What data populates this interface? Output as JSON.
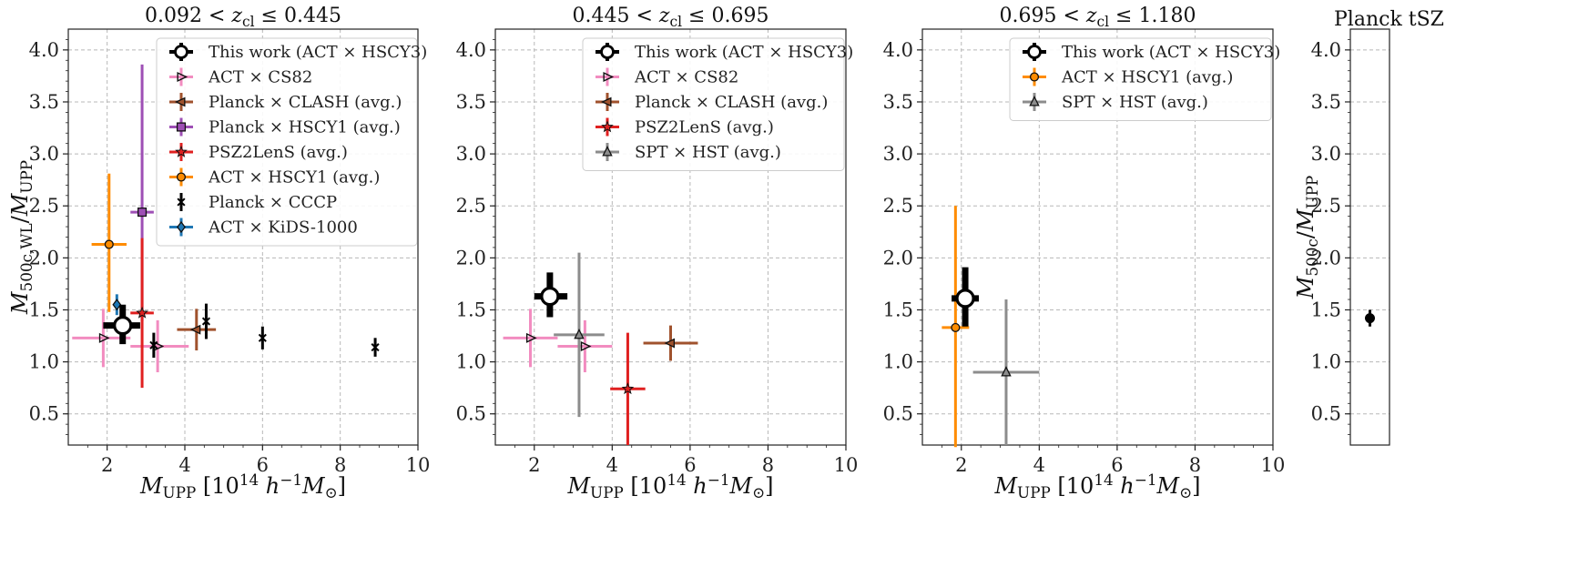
{
  "chart_data": [
    {
      "type": "scatter",
      "title": "0.092 < z_cl ≤ 0.445",
      "xlabel": "M_UPP [10^14 h^-1 M_⊙]",
      "ylabel": "M_500c,WL / M_UPP",
      "xlim": [
        1,
        10
      ],
      "ylim": [
        0.2,
        4.2
      ],
      "xticks": [
        "2",
        "4",
        "6",
        "8",
        "10"
      ],
      "yticks": [
        "0.5",
        "1.0",
        "1.5",
        "2.0",
        "2.5",
        "3.0",
        "3.5",
        "4.0"
      ],
      "legend_position": "top-right",
      "series": [
        {
          "name": "This work (ACT × HSCY3)",
          "color": "#000000",
          "marker": "circle-open",
          "size": "large",
          "points": [
            {
              "x": 2.4,
              "y": 1.35,
              "xerr": [
                0.5,
                0.45
              ],
              "yerr": [
                0.18,
                0.2
              ]
            }
          ]
        },
        {
          "name": "ACT × CS82",
          "color": "#f28cc0",
          "marker": "triangle-right",
          "points": [
            {
              "x": 1.9,
              "y": 1.23,
              "xerr": [
                0.8,
                0.7
              ],
              "yerr": [
                0.28,
                0.28
              ]
            },
            {
              "x": 3.3,
              "y": 1.15,
              "xerr": [
                0.7,
                0.8
              ],
              "yerr": [
                0.25,
                0.25
              ]
            }
          ]
        },
        {
          "name": "Planck × CLASH (avg.)",
          "color": "#a0522d",
          "marker": "triangle-left",
          "points": [
            {
              "x": 4.3,
              "y": 1.31,
              "xerr": [
                0.5,
                0.5
              ],
              "yerr": [
                0.2,
                0.2
              ]
            }
          ]
        },
        {
          "name": "Planck × HSCY1 (avg.)",
          "color": "#9e4fb5",
          "marker": "square",
          "points": [
            {
              "x": 2.9,
              "y": 2.44,
              "xerr": [
                0.3,
                0.3
              ],
              "yerr": [
                1.05,
                1.42
              ]
            }
          ]
        },
        {
          "name": "PSZ2LenS (avg.)",
          "color": "#e02020",
          "marker": "star",
          "points": [
            {
              "x": 2.9,
              "y": 1.47,
              "xerr": [
                0.3,
                0.3
              ],
              "yerr": [
                0.72,
                0.72
              ]
            }
          ]
        },
        {
          "name": "ACT × HSCY1 (avg.)",
          "color": "#ff8c00",
          "marker": "circle",
          "points": [
            {
              "x": 2.05,
              "y": 2.13,
              "xerr": [
                0.45,
                0.45
              ],
              "yerr": [
                0.65,
                0.68
              ]
            }
          ]
        },
        {
          "name": "Planck × CCCP",
          "color": "#000000",
          "marker": "x",
          "points": [
            {
              "x": 3.2,
              "y": 1.16,
              "xerr": [
                0,
                0
              ],
              "yerr": [
                0.12,
                0.12
              ]
            },
            {
              "x": 4.55,
              "y": 1.39,
              "xerr": [
                0,
                0
              ],
              "yerr": [
                0.17,
                0.17
              ]
            },
            {
              "x": 6.0,
              "y": 1.23,
              "xerr": [
                0,
                0
              ],
              "yerr": [
                0.11,
                0.11
              ]
            },
            {
              "x": 8.9,
              "y": 1.14,
              "xerr": [
                0,
                0
              ],
              "yerr": [
                0.09,
                0.09
              ]
            }
          ]
        },
        {
          "name": "ACT × KiDS-1000",
          "color": "#1f77b4",
          "marker": "diamond",
          "points": [
            {
              "x": 2.25,
              "y": 1.55,
              "xerr": [
                0,
                0
              ],
              "yerr": [
                0.1,
                0.1
              ]
            }
          ]
        }
      ]
    },
    {
      "type": "scatter",
      "title": "0.445 < z_cl ≤ 0.695",
      "xlabel": "M_UPP [10^14 h^-1 M_⊙]",
      "ylabel": "",
      "xlim": [
        1,
        10
      ],
      "ylim": [
        0.2,
        4.2
      ],
      "xticks": [
        "2",
        "4",
        "6",
        "8",
        "10"
      ],
      "yticks": [
        "0.5",
        "1.0",
        "1.5",
        "2.0",
        "2.5",
        "3.0",
        "3.5",
        "4.0"
      ],
      "legend_position": "top-right",
      "series": [
        {
          "name": "This work (ACT × HSCY3)",
          "color": "#000000",
          "marker": "circle-open",
          "size": "large",
          "points": [
            {
              "x": 2.4,
              "y": 1.63,
              "xerr": [
                0.4,
                0.45
              ],
              "yerr": [
                0.2,
                0.23
              ]
            }
          ]
        },
        {
          "name": "ACT × CS82",
          "color": "#f28cc0",
          "marker": "triangle-right",
          "points": [
            {
              "x": 1.9,
              "y": 1.23,
              "xerr": [
                0.7,
                0.7
              ],
              "yerr": [
                0.28,
                0.28
              ]
            },
            {
              "x": 3.3,
              "y": 1.15,
              "xerr": [
                0.7,
                0.7
              ],
              "yerr": [
                0.25,
                0.25
              ]
            }
          ]
        },
        {
          "name": "Planck × CLASH (avg.)",
          "color": "#a0522d",
          "marker": "triangle-left",
          "points": [
            {
              "x": 5.5,
              "y": 1.18,
              "xerr": [
                0.7,
                0.7
              ],
              "yerr": [
                0.17,
                0.17
              ]
            }
          ]
        },
        {
          "name": "PSZ2LenS (avg.)",
          "color": "#e02020",
          "marker": "star",
          "points": [
            {
              "x": 4.4,
              "y": 0.74,
              "xerr": [
                0.45,
                0.45
              ],
              "yerr": [
                0.54,
                0.54
              ]
            }
          ]
        },
        {
          "name": "SPT × HST (avg.)",
          "color": "#8c8c8c",
          "marker": "triangle-up",
          "points": [
            {
              "x": 3.15,
              "y": 1.26,
              "xerr": [
                0.65,
                0.65
              ],
              "yerr": [
                0.79,
                0.79
              ]
            }
          ]
        }
      ]
    },
    {
      "type": "scatter",
      "title": "0.695 < z_cl ≤ 1.180",
      "xlabel": "M_UPP [10^14 h^-1 M_⊙]",
      "ylabel": "",
      "xlim": [
        1,
        10
      ],
      "ylim": [
        0.2,
        4.2
      ],
      "xticks": [
        "2",
        "4",
        "6",
        "8",
        "10"
      ],
      "yticks": [
        "0.5",
        "1.0",
        "1.5",
        "2.0",
        "2.5",
        "3.0",
        "3.5",
        "4.0"
      ],
      "legend_position": "top-right",
      "series": [
        {
          "name": "This work (ACT × HSCY3)",
          "color": "#000000",
          "marker": "circle-open",
          "size": "large",
          "points": [
            {
              "x": 2.1,
              "y": 1.61,
              "xerr": [
                0.35,
                0.35
              ],
              "yerr": [
                0.27,
                0.3
              ]
            }
          ]
        },
        {
          "name": "ACT × HSCY1 (avg.)",
          "color": "#ff8c00",
          "marker": "circle",
          "points": [
            {
              "x": 1.85,
              "y": 1.33,
              "xerr": [
                0.35,
                0.35
              ],
              "yerr": [
                1.15,
                1.17
              ]
            }
          ]
        },
        {
          "name": "SPT × HST (avg.)",
          "color": "#8c8c8c",
          "marker": "triangle-up",
          "points": [
            {
              "x": 3.15,
              "y": 0.9,
              "xerr": [
                0.85,
                0.85
              ],
              "yerr": [
                0.7,
                0.7
              ]
            }
          ]
        }
      ]
    },
    {
      "type": "scatter",
      "title": "Planck tSZ",
      "xlabel": "",
      "ylabel": "M_500c / M_UPP",
      "ylim": [
        0.2,
        4.2
      ],
      "yticks": [
        "0.5",
        "1.0",
        "1.5",
        "2.0",
        "2.5",
        "3.0",
        "3.5",
        "4.0"
      ],
      "series": [
        {
          "name": "Planck tSZ",
          "color": "#000000",
          "marker": "circle",
          "points": [
            {
              "y": 1.42,
              "yerr": [
                0.08,
                0.08
              ]
            }
          ]
        }
      ]
    }
  ],
  "colors": {
    "grid": "#b8b8b8",
    "frame": "#222222"
  }
}
